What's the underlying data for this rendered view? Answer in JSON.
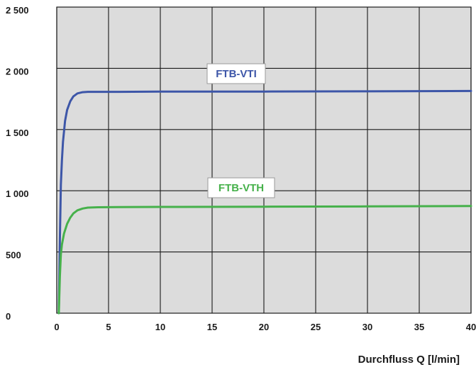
{
  "chart_data": {
    "type": "line",
    "title": "",
    "xlabel": "Durchfluss Q [l/min]",
    "ylabel": "",
    "xlim": [
      0,
      40
    ],
    "ylim": [
      0,
      2500
    ],
    "x_ticks": [
      0,
      5,
      10,
      15,
      20,
      25,
      30,
      35,
      40
    ],
    "x_tick_labels": [
      "0",
      "5",
      "10",
      "15",
      "20",
      "25",
      "30",
      "35",
      "40"
    ],
    "y_ticks": [
      0,
      500,
      1000,
      1500,
      2000,
      2500
    ],
    "y_tick_labels": [
      "0",
      "500",
      "1 000",
      "1 500",
      "2 000",
      "2 500"
    ],
    "grid": true,
    "background_color": "#dcdcdc",
    "series": [
      {
        "name": "FTB-VTI",
        "color": "#3d56a8",
        "x": [
          0.2,
          0.3,
          0.4,
          0.5,
          0.6,
          0.8,
          1.0,
          1.3,
          1.6,
          2.0,
          2.5,
          3.0,
          4.0,
          6.0,
          10.0,
          20.0,
          30.0,
          40.0
        ],
        "y": [
          0,
          600,
          1050,
          1250,
          1400,
          1570,
          1660,
          1730,
          1770,
          1795,
          1805,
          1808,
          1808,
          1808,
          1810,
          1810,
          1812,
          1815
        ]
      },
      {
        "name": "FTB-VTH",
        "color": "#46b14b",
        "x": [
          0.2,
          0.3,
          0.4,
          0.5,
          0.7,
          1.0,
          1.3,
          1.6,
          2.0,
          2.5,
          3.0,
          4.0,
          6.0,
          10.0,
          20.0,
          30.0,
          40.0
        ],
        "y": [
          0,
          300,
          480,
          560,
          650,
          730,
          780,
          815,
          840,
          855,
          862,
          865,
          867,
          868,
          870,
          872,
          875
        ]
      }
    ]
  }
}
